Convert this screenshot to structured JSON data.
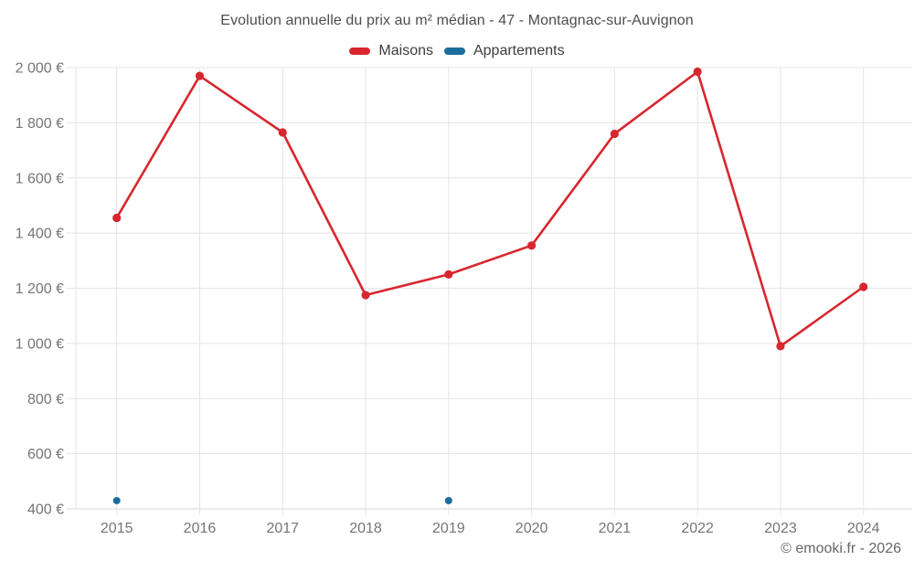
{
  "chart_data": {
    "type": "line",
    "title": "Evolution annuelle du prix au m² médian - 47 - Montagnac-sur-Auvignon",
    "x": [
      "2015",
      "2016",
      "2017",
      "2018",
      "2019",
      "2020",
      "2021",
      "2022",
      "2023",
      "2024"
    ],
    "series": [
      {
        "name": "Maisons",
        "color": "#d8262e",
        "style": "line+points",
        "values": [
          1455,
          1970,
          1765,
          1175,
          1250,
          1355,
          1760,
          1985,
          990,
          1205
        ]
      },
      {
        "name": "Appartements",
        "color": "#1b6d9e",
        "style": "points",
        "values": [
          430,
          null,
          null,
          null,
          430,
          null,
          null,
          null,
          null,
          null
        ]
      }
    ],
    "ylabel": "",
    "xlabel": "",
    "ylim": [
      400,
      2000
    ],
    "ytick_step": 200,
    "ytick_labels": [
      "400 €",
      "600 €",
      "800 €",
      "1 000 €",
      "1 200 €",
      "1 400 €",
      "1 600 €",
      "1 800 €",
      "2 000 €"
    ],
    "grid": true,
    "legend_position": "top",
    "colors": {
      "grid": "#e4e4e4",
      "axis_baseline": "#d6d6d6",
      "tick_label": "#757575",
      "title": "#4d4d4d",
      "legend_text": "#3d3d3d"
    }
  },
  "footer": {
    "credit": "© emooki.fr - 2026"
  }
}
